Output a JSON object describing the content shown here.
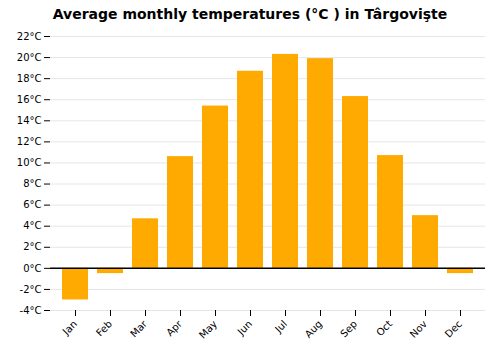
{
  "chart_data": {
    "type": "bar",
    "title": "Average monthly temperatures (°C ) in Târgovişte",
    "categories": [
      "Jan",
      "Feb",
      "Mar",
      "Apr",
      "May",
      "Jun",
      "Jul",
      "Aug",
      "Sep",
      "Oct",
      "Nov",
      "Dec"
    ],
    "values": [
      -3.0,
      -0.5,
      4.7,
      10.6,
      15.4,
      18.7,
      20.3,
      19.9,
      16.3,
      10.7,
      5.0,
      -0.5
    ],
    "color": "#FFAA00",
    "ylim": [
      -4,
      22
    ],
    "yticks": [
      {
        "value": -4,
        "label": "-4°C"
      },
      {
        "value": -2,
        "label": "-2°C"
      },
      {
        "value": 0,
        "label": "0°C"
      },
      {
        "value": 2,
        "label": "2°C"
      },
      {
        "value": 4,
        "label": "4°C"
      },
      {
        "value": 6,
        "label": "6°C"
      },
      {
        "value": 8,
        "label": "8°C"
      },
      {
        "value": 10,
        "label": "10°C"
      },
      {
        "value": 12,
        "label": "12°C"
      },
      {
        "value": 14,
        "label": "14°C"
      },
      {
        "value": 16,
        "label": "16°C"
      },
      {
        "value": 18,
        "label": "18°C"
      },
      {
        "value": 20,
        "label": "20°C"
      },
      {
        "value": 22,
        "label": "22°C"
      }
    ],
    "grid": true
  }
}
